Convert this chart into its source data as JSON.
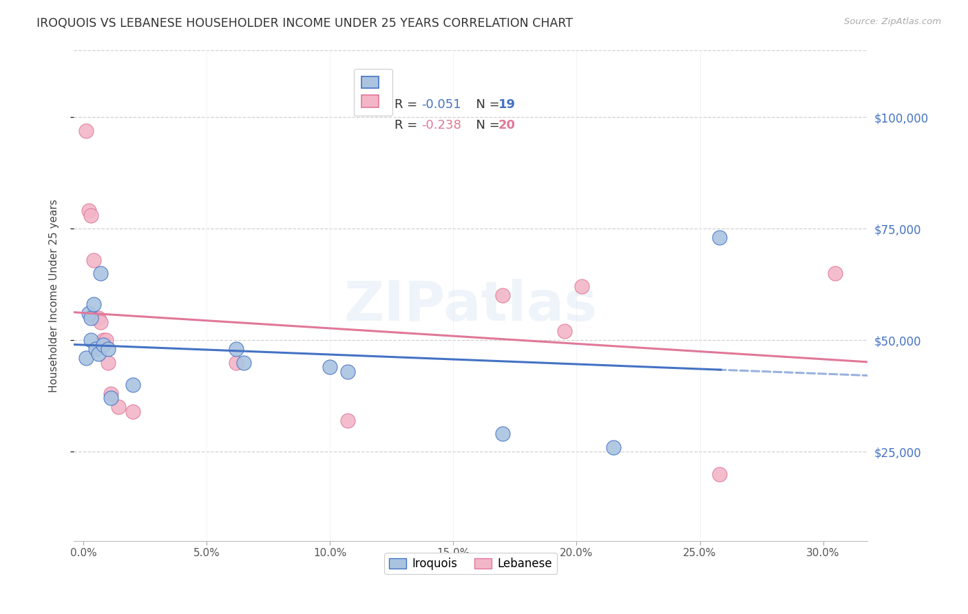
{
  "title": "IROQUOIS VS LEBANESE HOUSEHOLDER INCOME UNDER 25 YEARS CORRELATION CHART",
  "source": "Source: ZipAtlas.com",
  "ylabel": "Householder Income Under 25 years",
  "xtick_labels": [
    "0.0%",
    "5.0%",
    "10.0%",
    "15.0%",
    "20.0%",
    "25.0%",
    "30.0%"
  ],
  "xtick_values": [
    0.0,
    0.05,
    0.1,
    0.15,
    0.2,
    0.25,
    0.3
  ],
  "ytick_labels": [
    "$25,000",
    "$50,000",
    "$75,000",
    "$100,000"
  ],
  "ytick_values": [
    25000,
    50000,
    75000,
    100000
  ],
  "xlim": [
    -0.004,
    0.318
  ],
  "ylim": [
    5000,
    115000
  ],
  "iroquois_x": [
    0.001,
    0.002,
    0.003,
    0.003,
    0.004,
    0.005,
    0.006,
    0.007,
    0.008,
    0.01,
    0.011,
    0.02,
    0.062,
    0.065,
    0.1,
    0.107,
    0.17,
    0.215,
    0.258
  ],
  "iroquois_y": [
    46000,
    56000,
    55000,
    50000,
    58000,
    48000,
    47000,
    65000,
    49000,
    48000,
    37000,
    40000,
    48000,
    45000,
    44000,
    43000,
    29000,
    26000,
    73000
  ],
  "lebanese_x": [
    0.001,
    0.002,
    0.003,
    0.004,
    0.005,
    0.006,
    0.007,
    0.008,
    0.009,
    0.01,
    0.011,
    0.014,
    0.02,
    0.062,
    0.107,
    0.17,
    0.195,
    0.202,
    0.258,
    0.305
  ],
  "lebanese_y": [
    97000,
    79000,
    78000,
    68000,
    55000,
    55000,
    54000,
    50000,
    50000,
    45000,
    38000,
    35000,
    34000,
    45000,
    32000,
    60000,
    52000,
    62000,
    20000,
    65000
  ],
  "iroquois_color": "#aac4e0",
  "lebanese_color": "#f2b6c8",
  "iroquois_line_color": "#4472c4",
  "lebanese_line_color": "#e07898",
  "legend_iroquois_R": "-0.051",
  "legend_iroquois_N": "19",
  "legend_lebanese_R": "-0.238",
  "legend_lebanese_N": "20",
  "watermark": "ZIPatlas",
  "background_color": "#ffffff",
  "grid_color": "#d0d0d0",
  "title_color": "#333333",
  "ytick_color": "#4472c4",
  "source_color": "#aaaaaa",
  "legend_R_color_irq": "#4472c4",
  "legend_R_color_leb": "#e07898",
  "legend_N_color": "#333333"
}
